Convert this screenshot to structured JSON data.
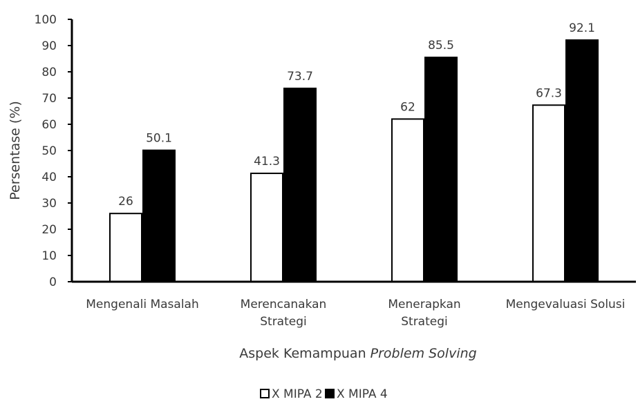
{
  "chart_data": {
    "type": "bar",
    "categories": [
      [
        "Mengenali Masalah"
      ],
      [
        "Merencanakan",
        "Strategi"
      ],
      [
        "Menerapkan",
        "Strategi"
      ],
      [
        "Mengevaluasi Solusi"
      ]
    ],
    "series": [
      {
        "name": "X MIPA 2",
        "values": [
          26,
          41.3,
          62,
          67.3
        ],
        "color": "#ffffff"
      },
      {
        "name": "X MIPA 4",
        "values": [
          50.1,
          73.7,
          85.5,
          92.1
        ],
        "color": "#000000"
      }
    ],
    "data_labels": [
      [
        "26",
        "41.3",
        "62",
        "67.3"
      ],
      [
        "50.1",
        "73.7",
        "85.5",
        "92.1"
      ]
    ],
    "ylabel": "Persentase (%)",
    "xlabel": {
      "prefix": "Aspek Kemampuan ",
      "italic": "Problem Solving"
    },
    "ylim": [
      0,
      100
    ],
    "yticks": [
      0,
      10,
      20,
      30,
      40,
      50,
      60,
      70,
      80,
      90,
      100
    ],
    "grid": false,
    "legend_position": "bottom"
  }
}
